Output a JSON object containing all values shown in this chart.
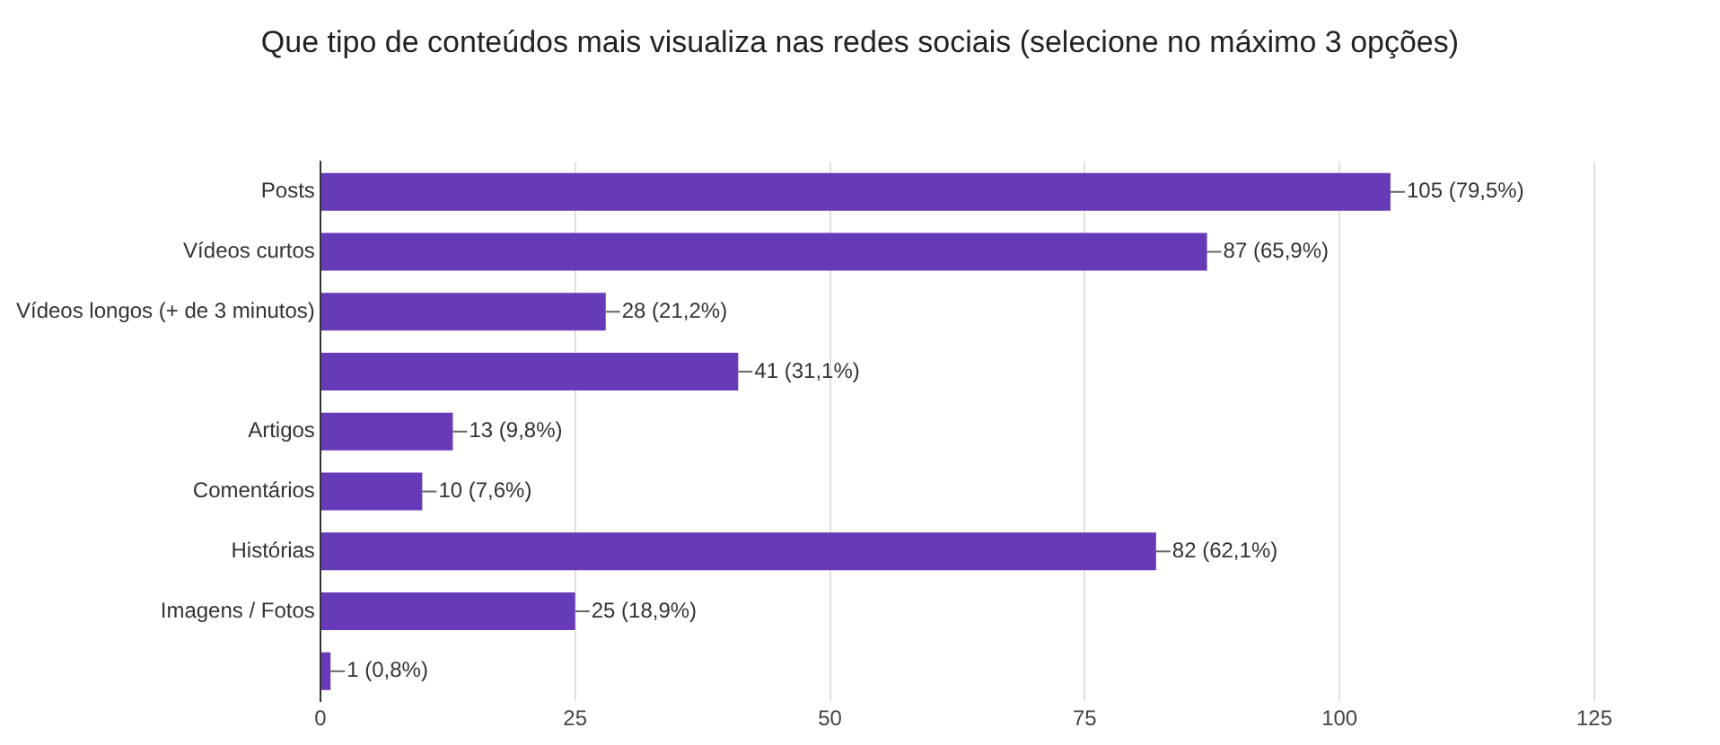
{
  "chart_data": {
    "type": "bar",
    "orientation": "horizontal",
    "title": "Que tipo de conteúdos mais visualiza nas redes sociais (selecione no máximo 3 opções)",
    "categories": [
      "Posts",
      "Vídeos curtos",
      "Vídeos longos (+ de 3 minutos)",
      null,
      "Artigos",
      "Comentários",
      "Histórias",
      "Imagens / Fotos",
      null
    ],
    "values": [
      105,
      87,
      28,
      41,
      13,
      10,
      82,
      25,
      1
    ],
    "value_labels": [
      "105 (79,5%)",
      "87 (65,9%)",
      "28 (21,2%)",
      "41 (31,1%)",
      "13 (9,8%)",
      "10 (7,6%)",
      "82 (62,1%)",
      "25 (18,9%)",
      "1 (0,8%)"
    ],
    "color": "#673ab7",
    "xlim": [
      0,
      125
    ],
    "xticks": [
      0,
      25,
      50,
      75,
      100,
      125
    ],
    "grid": "x",
    "legend": false
  }
}
